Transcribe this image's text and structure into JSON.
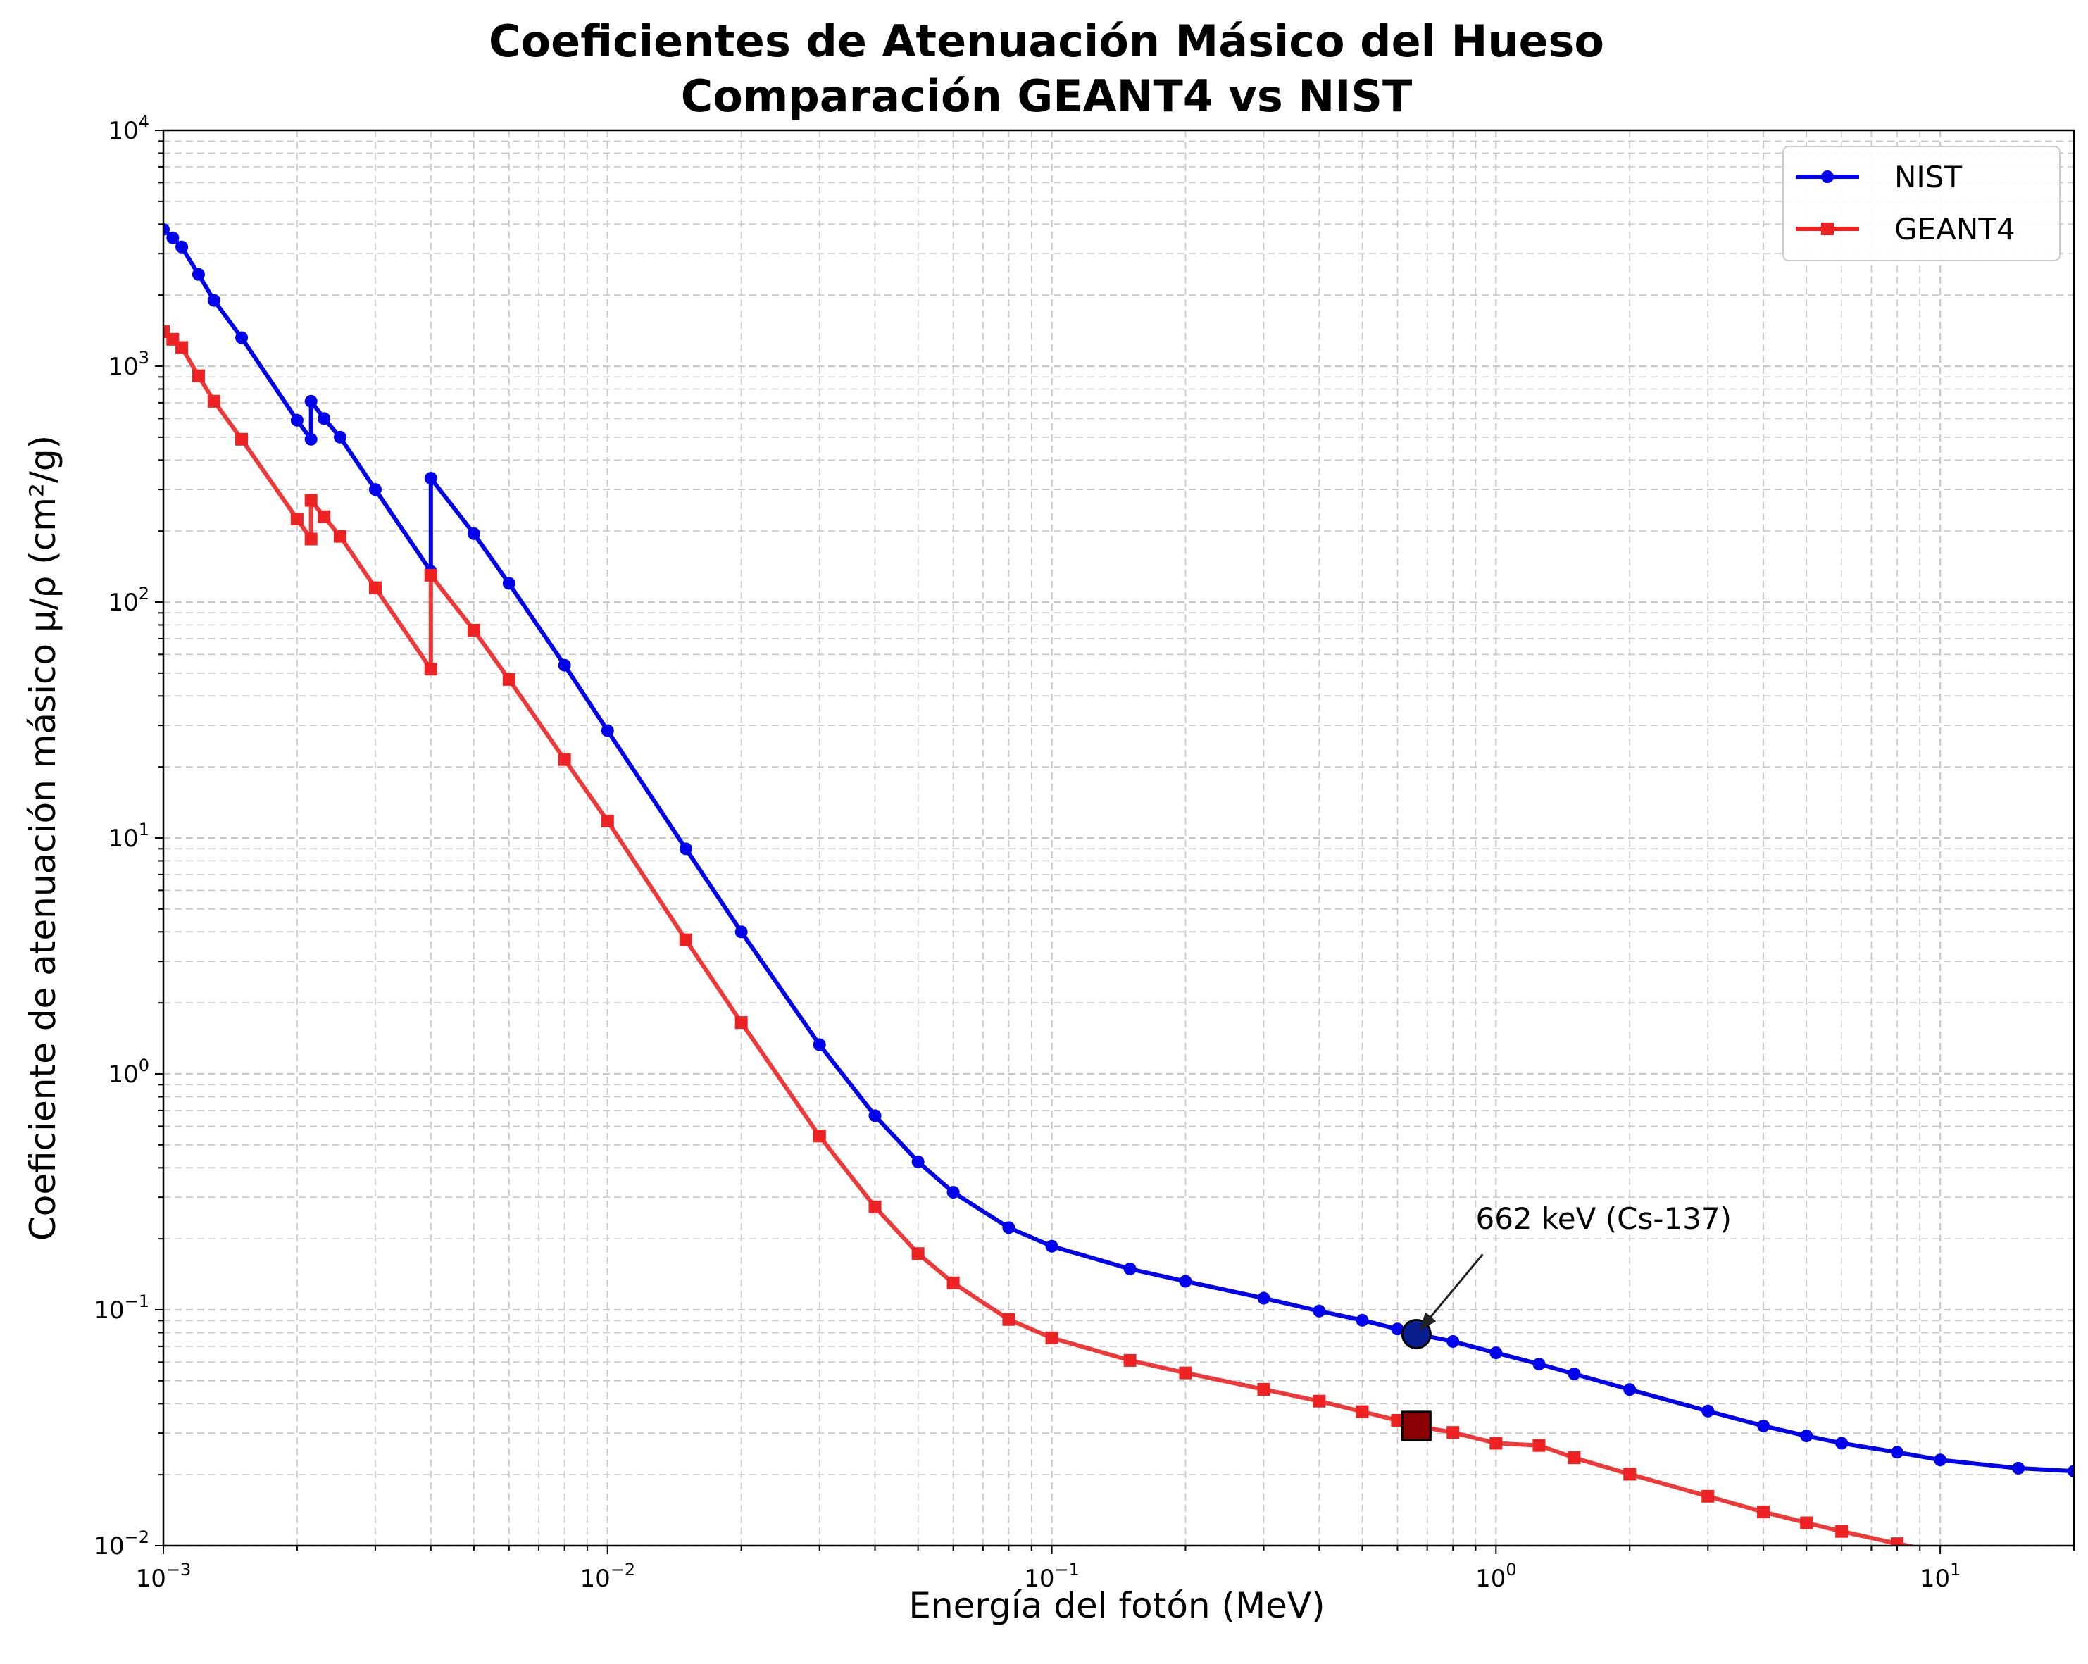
{
  "chart_data": {
    "type": "line",
    "title": [
      "Coeficientes de Atenuación Másico del Hueso",
      "Comparación GEANT4 vs NIST"
    ],
    "xlabel": "Energía del fotón (MeV)",
    "ylabel": "Coeficiente de atenuación másico μ/ρ (cm²/g)",
    "xscale": "log",
    "yscale": "log",
    "xlim": [
      0.001,
      20
    ],
    "ylim": [
      0.01,
      10000
    ],
    "grid": true,
    "legend_position": "top-right",
    "x_ticks": [
      {
        "base": "10",
        "exp": "−3",
        "value": 0.001
      },
      {
        "base": "10",
        "exp": "−2",
        "value": 0.01
      },
      {
        "base": "10",
        "exp": "−1",
        "value": 0.1
      },
      {
        "base": "10",
        "exp": "0",
        "value": 1
      },
      {
        "base": "10",
        "exp": "1",
        "value": 10
      }
    ],
    "y_ticks": [
      {
        "base": "10",
        "exp": "−2",
        "value": 0.01
      },
      {
        "base": "10",
        "exp": "−1",
        "value": 0.1
      },
      {
        "base": "10",
        "exp": "0",
        "value": 1
      },
      {
        "base": "10",
        "exp": "1",
        "value": 10
      },
      {
        "base": "10",
        "exp": "2",
        "value": 100
      },
      {
        "base": "10",
        "exp": "3",
        "value": 1000
      },
      {
        "base": "10",
        "exp": "4",
        "value": 10000
      }
    ],
    "series": [
      {
        "name": "NIST",
        "color": "#0000ee",
        "marker": "circle",
        "x": [
          0.001,
          0.00105,
          0.0011,
          0.0012,
          0.0013,
          0.0015,
          0.002,
          0.00215,
          0.00215,
          0.0023,
          0.0025,
          0.003,
          0.004,
          0.004,
          0.005,
          0.006,
          0.008,
          0.01,
          0.015,
          0.02,
          0.03,
          0.04,
          0.05,
          0.06,
          0.08,
          0.1,
          0.15,
          0.2,
          0.3,
          0.4,
          0.5,
          0.6,
          0.662,
          0.8,
          1.0,
          1.25,
          1.5,
          2.0,
          3.0,
          4.0,
          5.0,
          6.0,
          8.0,
          10.0,
          15.0,
          20.0
        ],
        "y": [
          3800,
          3500,
          3200,
          2450,
          1900,
          1320,
          590,
          490,
          710,
          600,
          500,
          300,
          135,
          335,
          195,
          120,
          54,
          28.5,
          9.0,
          4.0,
          1.33,
          0.665,
          0.424,
          0.315,
          0.223,
          0.186,
          0.149,
          0.132,
          0.112,
          0.0988,
          0.0903,
          0.0829,
          0.0789,
          0.0734,
          0.0657,
          0.0589,
          0.0535,
          0.0459,
          0.0372,
          0.0322,
          0.0292,
          0.0272,
          0.0249,
          0.0231,
          0.0213,
          0.0207
        ]
      },
      {
        "name": "GEANT4",
        "color": "#ee2222",
        "marker": "square",
        "x": [
          0.001,
          0.00105,
          0.0011,
          0.0012,
          0.0013,
          0.0015,
          0.002,
          0.00215,
          0.00215,
          0.0023,
          0.0025,
          0.003,
          0.004,
          0.004,
          0.005,
          0.006,
          0.008,
          0.01,
          0.015,
          0.02,
          0.03,
          0.04,
          0.05,
          0.06,
          0.08,
          0.1,
          0.15,
          0.2,
          0.3,
          0.4,
          0.5,
          0.6,
          0.662,
          0.8,
          1.0,
          1.25,
          1.5,
          2.0,
          3.0,
          4.0,
          5.0,
          6.0,
          8.0,
          10.0
        ],
        "y": [
          1400,
          1300,
          1200,
          910,
          710,
          490,
          225,
          185,
          270,
          230,
          190,
          115,
          52,
          130,
          76,
          47,
          21.5,
          11.8,
          3.7,
          1.65,
          0.545,
          0.273,
          0.173,
          0.13,
          0.091,
          0.076,
          0.061,
          0.054,
          0.046,
          0.041,
          0.037,
          0.034,
          0.0322,
          0.0302,
          0.0272,
          0.0266,
          0.0236,
          0.0201,
          0.0162,
          0.0139,
          0.0125,
          0.0115,
          0.0102,
          0.0094
        ]
      }
    ],
    "highlight": {
      "x": 0.662,
      "nist_y": 0.0789,
      "geant4_y": 0.0322,
      "nist_color": "#0a1f8f",
      "geant4_color": "#8b0000"
    },
    "annotation": {
      "text": "662 keV (Cs-137)",
      "x": 0.662,
      "y": 0.0789,
      "text_x": 0.9,
      "text_y": 0.2
    }
  }
}
